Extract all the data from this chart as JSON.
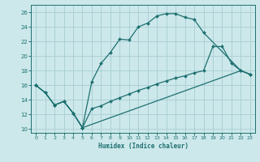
{
  "bg_color": "#cce8eb",
  "grid_color": "#a8cdd1",
  "line_color": "#1e7070",
  "xlabel": "Humidex (Indice chaleur)",
  "xlim": [
    -0.5,
    23.5
  ],
  "ylim": [
    9.5,
    27.0
  ],
  "xticks": [
    0,
    1,
    2,
    3,
    4,
    5,
    6,
    7,
    8,
    9,
    10,
    11,
    12,
    13,
    14,
    15,
    16,
    17,
    18,
    19,
    20,
    21,
    22,
    23
  ],
  "yticks": [
    10,
    12,
    14,
    16,
    18,
    20,
    22,
    24,
    26
  ],
  "line1_x": [
    0,
    1,
    2,
    3,
    4,
    5,
    6,
    7,
    8,
    9,
    10,
    11,
    12,
    13,
    14,
    15,
    16,
    17,
    18,
    22,
    23
  ],
  "line1_y": [
    16.0,
    15.0,
    13.3,
    13.8,
    12.2,
    10.2,
    16.5,
    19.0,
    20.5,
    22.3,
    22.2,
    24.0,
    24.5,
    25.5,
    25.8,
    25.8,
    25.3,
    25.0,
    23.2,
    18.0,
    17.5
  ],
  "line2_x": [
    0,
    1,
    2,
    3,
    4,
    5,
    6,
    7,
    8,
    9,
    10,
    11,
    12,
    13,
    14,
    15,
    16,
    17,
    18,
    19,
    20,
    21,
    22,
    23
  ],
  "line2_y": [
    16.0,
    15.0,
    13.3,
    13.8,
    12.2,
    10.2,
    12.8,
    13.2,
    13.8,
    14.3,
    14.8,
    15.3,
    15.7,
    16.2,
    16.6,
    17.0,
    17.3,
    17.7,
    18.0,
    21.3,
    21.3,
    19.0,
    18.0,
    17.5
  ],
  "line3_x": [
    0,
    1,
    2,
    3,
    4,
    5,
    22,
    23
  ],
  "line3_y": [
    16.0,
    15.0,
    13.3,
    13.8,
    12.2,
    10.2,
    18.0,
    17.5
  ]
}
